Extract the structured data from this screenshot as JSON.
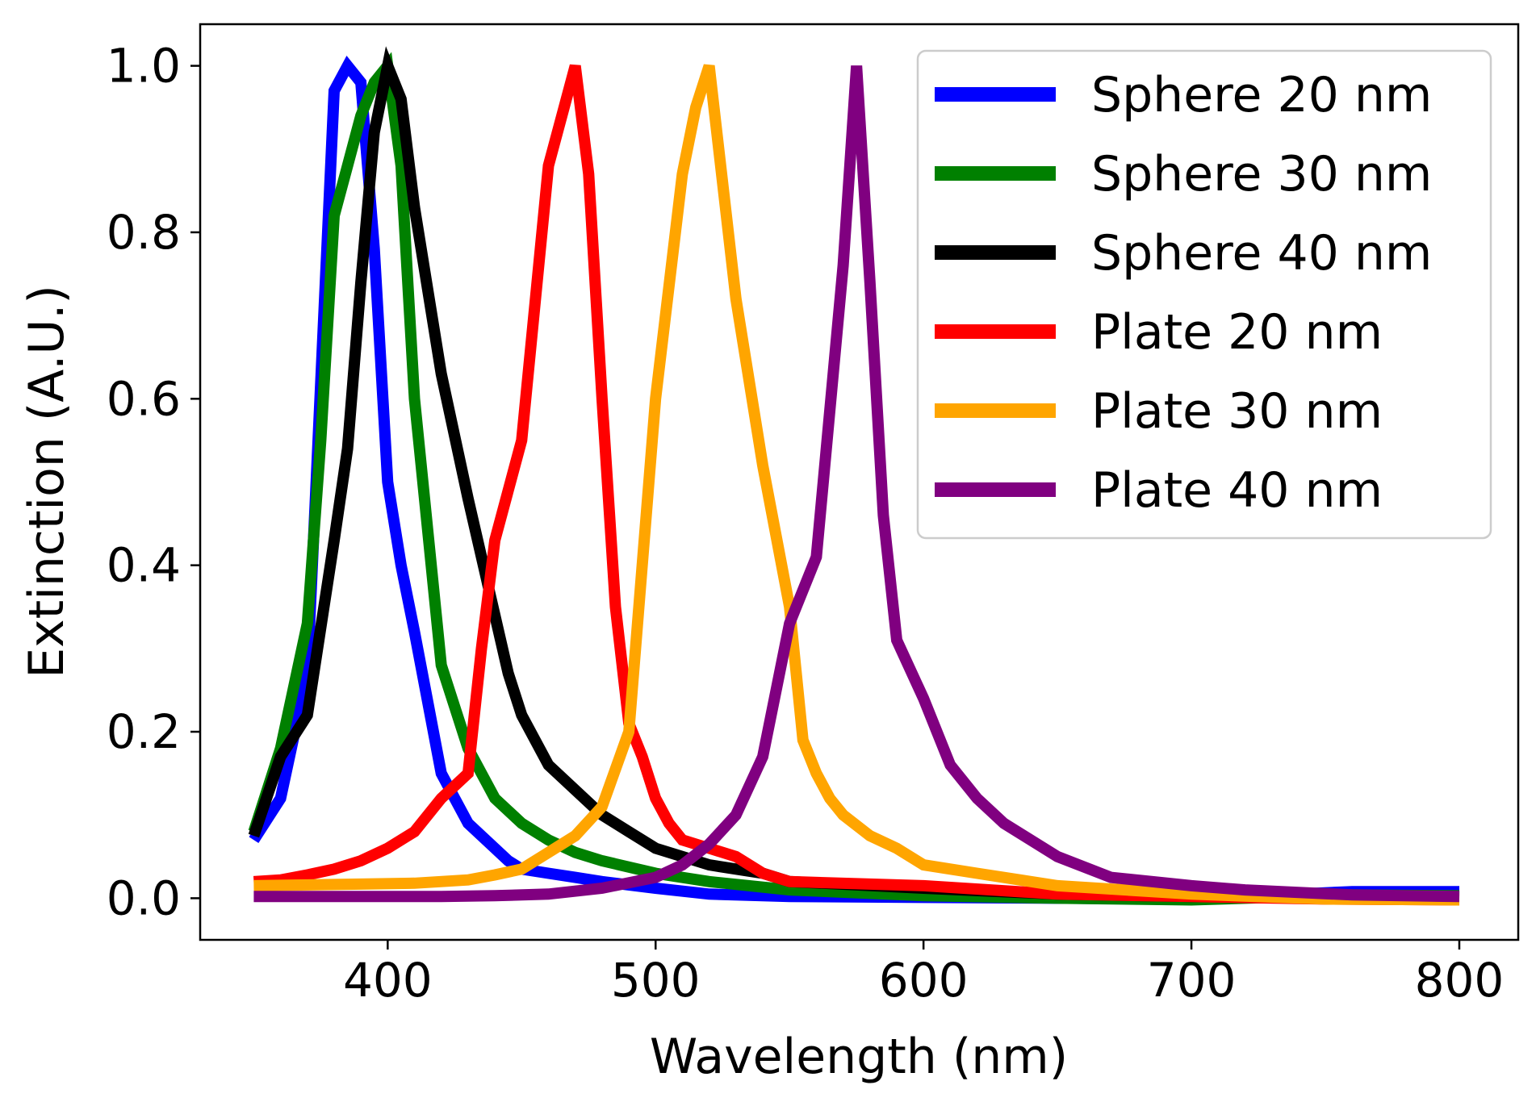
{
  "chart_data": {
    "type": "line",
    "title": "",
    "xlabel": "Wavelength (nm)",
    "ylabel": "Extinction (A.U.)",
    "xlim": [
      330,
      822
    ],
    "ylim": [
      -0.05,
      1.05
    ],
    "x_ticks": [
      400,
      500,
      600,
      700,
      800
    ],
    "x_tick_labels": [
      "400",
      "500",
      "600",
      "700",
      "800"
    ],
    "y_ticks": [
      0.0,
      0.2,
      0.4,
      0.6,
      0.8,
      1.0
    ],
    "y_tick_labels": [
      "0.0",
      "0.2",
      "0.4",
      "0.6",
      "0.8",
      "1.0"
    ],
    "grid": false,
    "legend_position": "top-right",
    "series": [
      {
        "name": "Sphere 20 nm",
        "color": "#0000ff",
        "x": [
          350,
          360,
          370,
          380,
          385,
          390,
          395,
          400,
          405,
          410,
          420,
          425,
          430,
          440,
          445,
          450,
          460,
          470,
          480,
          500,
          520,
          550,
          600,
          650,
          700,
          760,
          800
        ],
        "y": [
          0.07,
          0.12,
          0.27,
          0.97,
          1.0,
          0.98,
          0.78,
          0.5,
          0.4,
          0.32,
          0.15,
          0.12,
          0.09,
          0.06,
          0.045,
          0.035,
          0.03,
          0.025,
          0.02,
          0.012,
          0.005,
          0.002,
          0.001,
          0.0,
          -0.001,
          0.008,
          0.008
        ]
      },
      {
        "name": "Sphere 30 nm",
        "color": "#008000",
        "x": [
          350,
          360,
          370,
          375,
          380,
          385,
          390,
          395,
          400,
          405,
          410,
          420,
          425,
          430,
          440,
          450,
          460,
          470,
          480,
          500,
          520,
          550,
          600,
          650,
          700,
          760,
          800
        ],
        "y": [
          0.08,
          0.18,
          0.33,
          0.55,
          0.82,
          0.88,
          0.94,
          0.98,
          1.0,
          0.88,
          0.6,
          0.28,
          0.23,
          0.18,
          0.12,
          0.09,
          0.07,
          0.055,
          0.045,
          0.03,
          0.02,
          0.01,
          0.003,
          0.0,
          -0.002,
          0.004,
          0.003
        ]
      },
      {
        "name": "Sphere 40 nm",
        "color": "#000000",
        "x": [
          350,
          360,
          370,
          380,
          385,
          390,
          395,
          400,
          405,
          410,
          420,
          430,
          440,
          445,
          450,
          460,
          470,
          480,
          490,
          500,
          520,
          540,
          550,
          600,
          650,
          700,
          760,
          800
        ],
        "y": [
          0.075,
          0.17,
          0.22,
          0.43,
          0.54,
          0.74,
          0.92,
          1.0,
          0.96,
          0.83,
          0.63,
          0.48,
          0.34,
          0.27,
          0.22,
          0.16,
          0.13,
          0.1,
          0.08,
          0.06,
          0.04,
          0.03,
          0.02,
          0.012,
          0.005,
          0.002,
          0.002,
          0.001
        ]
      },
      {
        "name": "Plate 20 nm",
        "color": "#ff0000",
        "x": [
          350,
          360,
          370,
          380,
          390,
          400,
          410,
          420,
          430,
          435,
          440,
          450,
          460,
          470,
          475,
          480,
          485,
          490,
          495,
          500,
          505,
          510,
          520,
          530,
          540,
          550,
          600,
          650,
          700,
          750,
          800
        ],
        "y": [
          0.02,
          0.022,
          0.028,
          0.035,
          0.045,
          0.06,
          0.08,
          0.12,
          0.15,
          0.3,
          0.43,
          0.55,
          0.88,
          1.0,
          0.87,
          0.6,
          0.35,
          0.21,
          0.17,
          0.12,
          0.09,
          0.07,
          0.06,
          0.05,
          0.03,
          0.02,
          0.015,
          0.005,
          0.002,
          -0.001,
          -0.002
        ]
      },
      {
        "name": "Plate 30 nm",
        "color": "#ffa500",
        "x": [
          350,
          370,
          390,
          410,
          430,
          440,
          450,
          460,
          470,
          480,
          490,
          500,
          510,
          515,
          520,
          530,
          540,
          550,
          555,
          560,
          565,
          570,
          580,
          590,
          600,
          620,
          650,
          700,
          750,
          800
        ],
        "y": [
          0.015,
          0.016,
          0.017,
          0.018,
          0.022,
          0.028,
          0.035,
          0.055,
          0.075,
          0.11,
          0.2,
          0.6,
          0.87,
          0.95,
          1.0,
          0.72,
          0.52,
          0.35,
          0.19,
          0.15,
          0.12,
          0.1,
          0.075,
          0.06,
          0.04,
          0.03,
          0.015,
          0.005,
          -0.001,
          -0.002
        ]
      },
      {
        "name": "Plate 40 nm",
        "color": "#800080",
        "x": [
          350,
          380,
          400,
          420,
          440,
          460,
          480,
          500,
          510,
          520,
          530,
          540,
          550,
          560,
          570,
          575,
          580,
          585,
          590,
          600,
          610,
          620,
          630,
          650,
          670,
          700,
          720,
          760,
          800
        ],
        "y": [
          0.002,
          0.002,
          0.002,
          0.002,
          0.003,
          0.005,
          0.012,
          0.025,
          0.04,
          0.065,
          0.1,
          0.17,
          0.33,
          0.41,
          0.76,
          1.0,
          0.74,
          0.46,
          0.31,
          0.24,
          0.16,
          0.12,
          0.09,
          0.05,
          0.025,
          0.015,
          0.01,
          0.004,
          0.002
        ]
      }
    ]
  }
}
